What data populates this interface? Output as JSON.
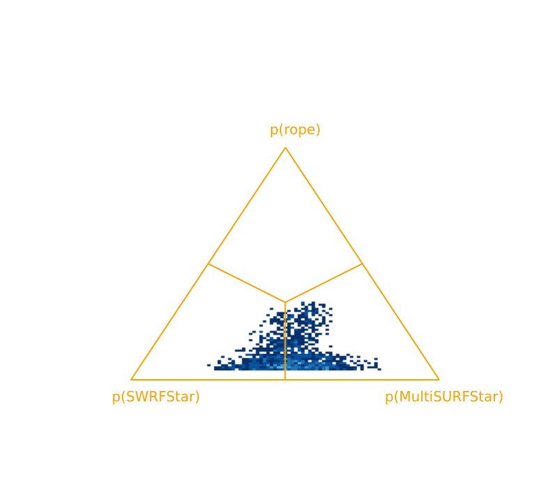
{
  "chart_data": {
    "type": "scatter",
    "subtype": "ternary-hexbin",
    "title": "",
    "vertices": {
      "top": "p(rope)",
      "left": "p(SWRFStar)",
      "right": "p(MultiSURFStar)"
    },
    "region_lines": true,
    "grid": false,
    "axis_color": "#f5a300",
    "cmap": [
      "#08306b",
      "#08519c",
      "#2171b5",
      "#4292c6",
      "#6baed6"
    ],
    "points": [
      [
        0.52,
        0.05
      ],
      [
        0.55,
        0.04
      ],
      [
        0.5,
        0.06
      ],
      [
        0.53,
        0.03
      ],
      [
        0.49,
        0.05
      ],
      [
        0.56,
        0.06
      ],
      [
        0.51,
        0.04
      ],
      [
        0.54,
        0.07
      ],
      [
        0.48,
        0.04
      ],
      [
        0.57,
        0.05
      ],
      [
        0.5,
        0.08
      ],
      [
        0.53,
        0.06
      ],
      [
        0.46,
        0.06
      ],
      [
        0.59,
        0.04
      ],
      [
        0.52,
        0.09
      ],
      [
        0.44,
        0.05
      ],
      [
        0.61,
        0.06
      ],
      [
        0.55,
        0.1
      ],
      [
        0.49,
        0.1
      ],
      [
        0.42,
        0.04
      ],
      [
        0.63,
        0.03
      ],
      [
        0.47,
        0.12
      ],
      [
        0.58,
        0.11
      ],
      [
        0.4,
        0.05
      ],
      [
        0.65,
        0.05
      ],
      [
        0.45,
        0.03
      ],
      [
        0.6,
        0.08
      ],
      [
        0.51,
        0.13
      ],
      [
        0.38,
        0.04
      ],
      [
        0.67,
        0.04
      ],
      [
        0.54,
        0.15
      ],
      [
        0.48,
        0.15
      ],
      [
        0.36,
        0.06
      ],
      [
        0.7,
        0.03
      ],
      [
        0.43,
        0.09
      ],
      [
        0.62,
        0.1
      ],
      [
        0.56,
        0.18
      ],
      [
        0.46,
        0.18
      ],
      [
        0.34,
        0.03
      ],
      [
        0.73,
        0.02
      ],
      [
        0.52,
        0.22
      ],
      [
        0.6,
        0.24
      ],
      [
        0.39,
        0.02
      ],
      [
        0.76,
        0.04
      ],
      [
        0.32,
        0.05
      ],
      [
        0.5,
        0.26
      ],
      [
        0.58,
        0.3
      ],
      [
        0.55,
        0.28
      ],
      [
        0.68,
        0.07
      ],
      [
        0.41,
        0.11
      ]
    ]
  }
}
